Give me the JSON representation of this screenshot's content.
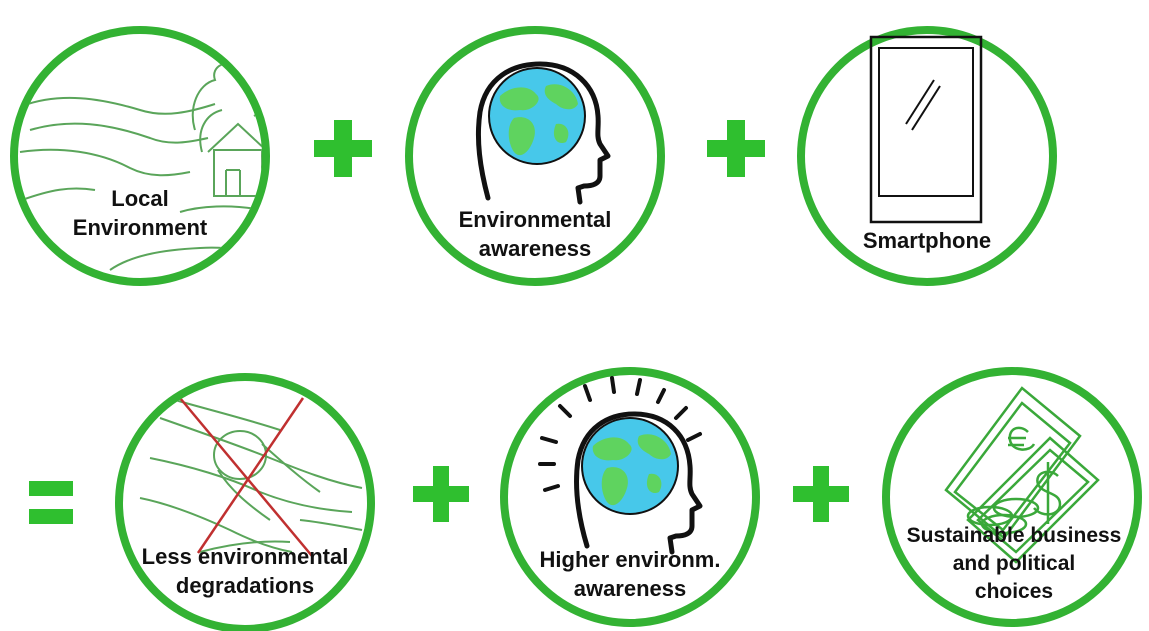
{
  "colors": {
    "ring": "#33b233",
    "operator": "#2fbf2f",
    "sketch": "#5aa55a",
    "ocean": "#47c8ea",
    "land": "#5fd35f",
    "cross": "#c03030",
    "ink": "#111111"
  },
  "circles": {
    "local_environment": {
      "icon": "landscape-icon",
      "label_lines": [
        "Local",
        "Environment"
      ]
    },
    "environmental_awareness": {
      "icon": "head-globe-icon",
      "label_lines": [
        "Environmental",
        "awareness"
      ]
    },
    "smartphone": {
      "icon": "smartphone-icon",
      "label_lines": [
        "Smartphone"
      ]
    },
    "less_degradation": {
      "icon": "crossed-landscape-icon",
      "label_lines": [
        "Less environmental",
        "degradations"
      ]
    },
    "higher_awareness": {
      "icon": "radiant-head-globe-icon",
      "label_lines": [
        "Higher environm.",
        "awareness"
      ]
    },
    "sustainable_choices": {
      "icon": "money-icon",
      "label_lines": [
        "Sustainable business",
        "and political",
        "choices"
      ]
    }
  },
  "operators": [
    "plus",
    "plus",
    "equals",
    "plus",
    "plus"
  ]
}
